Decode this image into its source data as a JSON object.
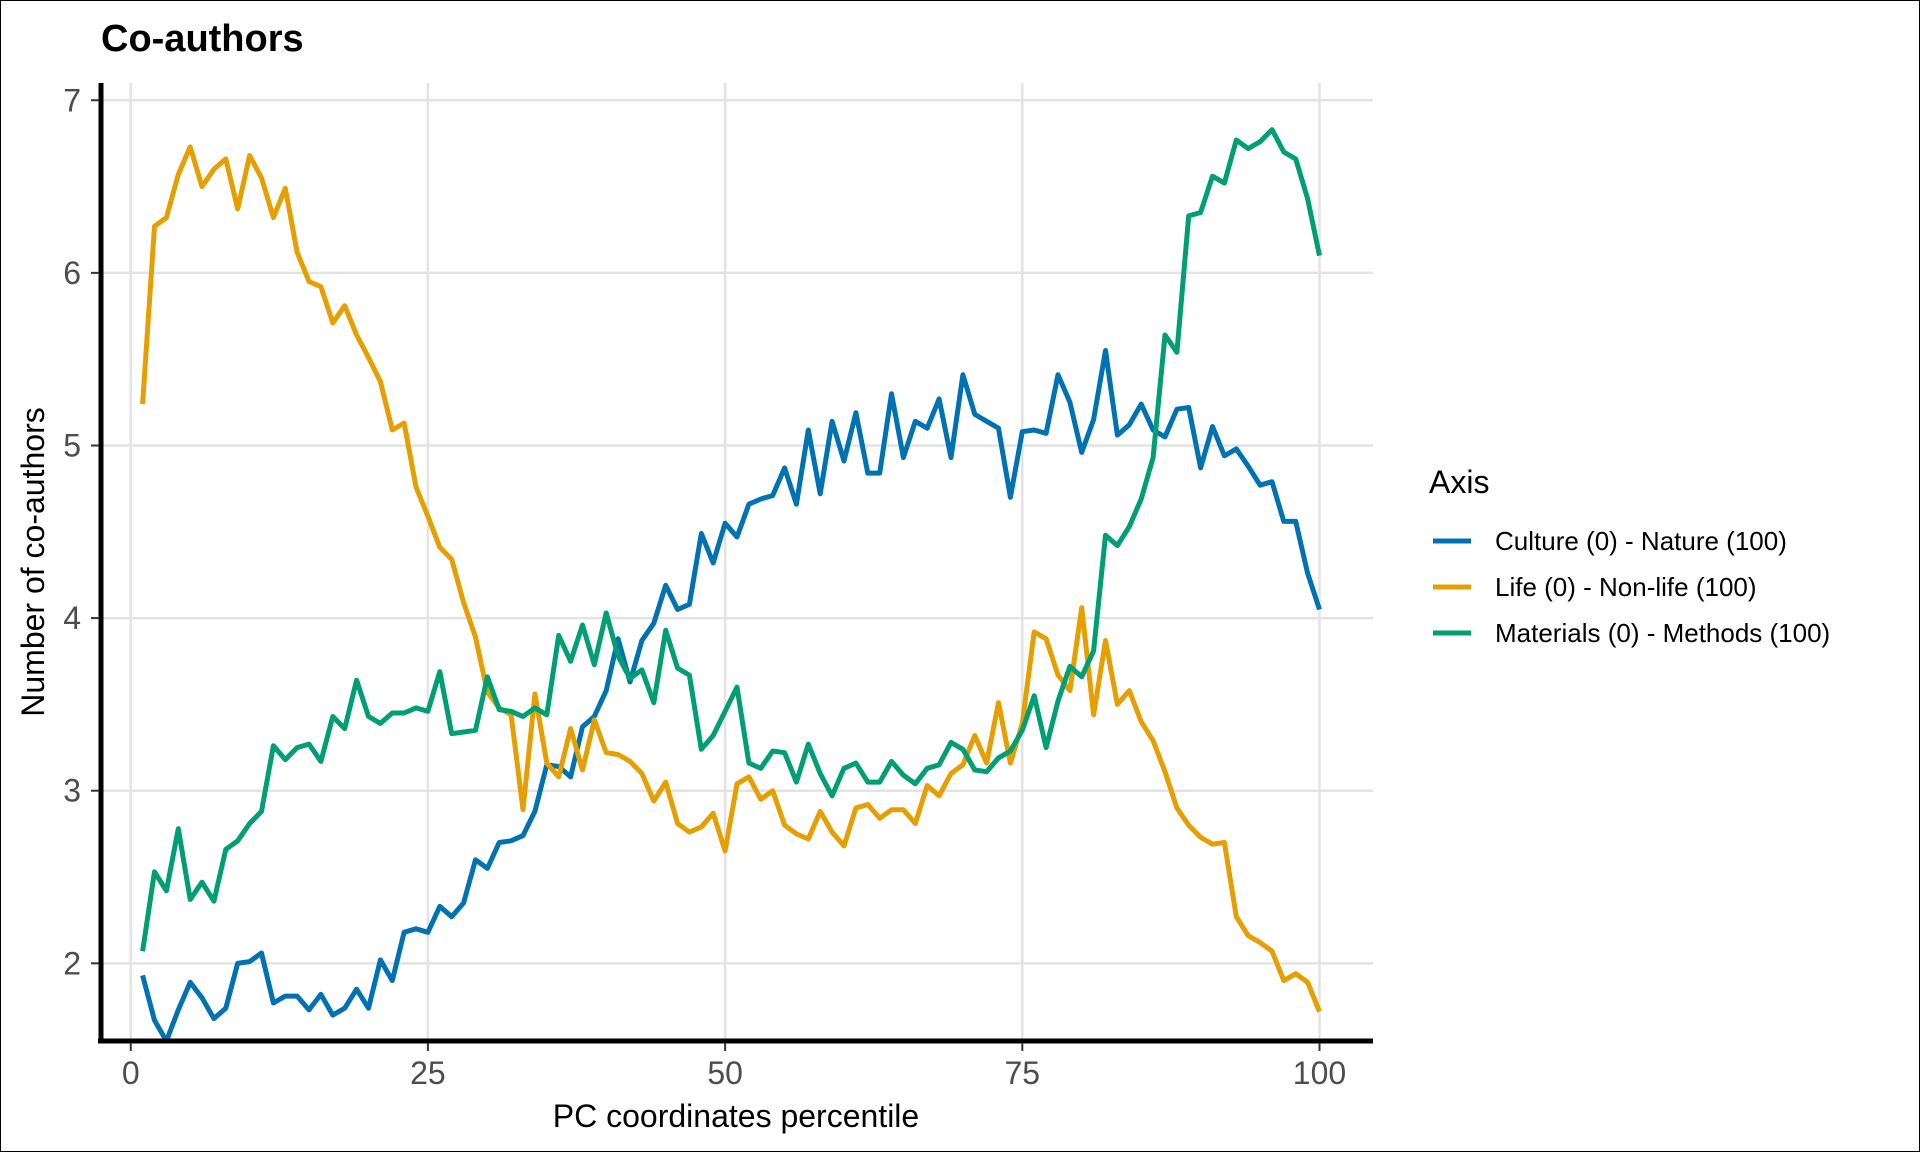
{
  "chart_data": {
    "type": "line",
    "title": "Co-authors",
    "xlabel": "PC coordinates percentile",
    "ylabel": "Number of co-authors",
    "xlim": [
      -2.5,
      104.5
    ],
    "ylim": [
      1.55,
      7.1
    ],
    "xticks": [
      0,
      25,
      50,
      75,
      100
    ],
    "xtick_labels": [
      "0",
      "25",
      "50",
      "75",
      "100"
    ],
    "yticks": [
      2,
      3,
      4,
      5,
      6,
      7
    ],
    "ytick_labels": [
      "2",
      "3",
      "4",
      "5",
      "6",
      "7"
    ],
    "grid": true,
    "legend": {
      "title": "Axis",
      "position": "right"
    },
    "x": [
      1,
      2,
      3,
      4,
      5,
      6,
      7,
      8,
      9,
      10,
      11,
      12,
      13,
      14,
      15,
      16,
      17,
      18,
      19,
      20,
      21,
      22,
      23,
      24,
      25,
      26,
      27,
      28,
      29,
      30,
      31,
      32,
      33,
      34,
      35,
      36,
      37,
      38,
      39,
      40,
      41,
      42,
      43,
      44,
      45,
      46,
      47,
      48,
      49,
      50,
      51,
      52,
      53,
      54,
      55,
      56,
      57,
      58,
      59,
      60,
      61,
      62,
      63,
      64,
      65,
      66,
      67,
      68,
      69,
      70,
      71,
      72,
      73,
      74,
      75,
      76,
      77,
      78,
      79,
      80,
      81,
      82,
      83,
      84,
      85,
      86,
      87,
      88,
      89,
      90,
      91,
      92,
      93,
      94,
      95,
      96,
      97,
      98,
      99,
      100
    ],
    "series": [
      {
        "name": "Culture (0) - Nature (100)",
        "color": "#0072b2",
        "values": [
          1.93,
          1.67,
          1.55,
          1.73,
          1.89,
          1.8,
          1.68,
          1.74,
          2.0,
          2.01,
          2.06,
          1.77,
          1.81,
          1.81,
          1.73,
          1.82,
          1.7,
          1.74,
          1.85,
          1.74,
          2.02,
          1.9,
          2.18,
          2.2,
          2.18,
          2.33,
          2.27,
          2.35,
          2.6,
          2.55,
          2.7,
          2.71,
          2.74,
          2.88,
          3.15,
          3.14,
          3.08,
          3.37,
          3.43,
          3.58,
          3.88,
          3.63,
          3.87,
          3.97,
          4.19,
          4.05,
          4.08,
          4.49,
          4.32,
          4.55,
          4.47,
          4.66,
          4.69,
          4.71,
          4.87,
          4.66,
          5.09,
          4.72,
          5.14,
          4.91,
          5.19,
          4.84,
          4.84,
          5.3,
          4.93,
          5.14,
          5.1,
          5.27,
          4.93,
          5.41,
          5.18,
          5.14,
          5.1,
          4.7,
          5.08,
          5.09,
          5.07,
          5.41,
          5.25,
          4.96,
          5.15,
          5.55,
          5.06,
          5.12,
          5.24,
          5.09,
          5.05,
          5.21,
          5.22,
          4.87,
          5.11,
          4.94,
          4.98,
          4.88,
          4.77,
          4.79,
          4.56,
          4.56,
          4.26,
          4.05
        ]
      },
      {
        "name": "Life (0) - Non-life (100)",
        "color": "#e69f00",
        "values": [
          5.24,
          6.27,
          6.32,
          6.57,
          6.73,
          6.5,
          6.6,
          6.66,
          6.37,
          6.68,
          6.55,
          6.32,
          6.49,
          6.12,
          5.95,
          5.92,
          5.71,
          5.81,
          5.64,
          5.51,
          5.37,
          5.09,
          5.13,
          4.76,
          4.59,
          4.41,
          4.34,
          4.09,
          3.89,
          3.57,
          3.48,
          3.44,
          2.89,
          3.56,
          3.16,
          3.08,
          3.36,
          3.12,
          3.41,
          3.22,
          3.21,
          3.17,
          3.1,
          2.94,
          3.05,
          2.81,
          2.76,
          2.79,
          2.87,
          2.65,
          3.04,
          3.08,
          2.95,
          3.0,
          2.8,
          2.75,
          2.72,
          2.88,
          2.76,
          2.68,
          2.9,
          2.92,
          2.84,
          2.89,
          2.89,
          2.81,
          3.03,
          2.97,
          3.1,
          3.15,
          3.32,
          3.16,
          3.51,
          3.16,
          3.39,
          3.92,
          3.88,
          3.67,
          3.58,
          4.06,
          3.44,
          3.87,
          3.5,
          3.58,
          3.4,
          3.29,
          3.11,
          2.9,
          2.8,
          2.73,
          2.69,
          2.7,
          2.27,
          2.16,
          2.12,
          2.07,
          1.9,
          1.94,
          1.89,
          1.72
        ]
      },
      {
        "name": "Materials (0) - Methods (100)",
        "color": "#009e73",
        "values": [
          2.07,
          2.53,
          2.42,
          2.78,
          2.37,
          2.47,
          2.36,
          2.66,
          2.71,
          2.81,
          2.88,
          3.26,
          3.18,
          3.25,
          3.27,
          3.17,
          3.43,
          3.36,
          3.64,
          3.43,
          3.39,
          3.45,
          3.45,
          3.48,
          3.46,
          3.69,
          3.33,
          3.34,
          3.35,
          3.66,
          3.47,
          3.46,
          3.43,
          3.48,
          3.44,
          3.9,
          3.75,
          3.96,
          3.73,
          4.03,
          3.78,
          3.65,
          3.7,
          3.51,
          3.93,
          3.71,
          3.67,
          3.24,
          3.32,
          3.46,
          3.6,
          3.16,
          3.13,
          3.23,
          3.22,
          3.05,
          3.27,
          3.1,
          2.97,
          3.13,
          3.16,
          3.05,
          3.05,
          3.17,
          3.09,
          3.04,
          3.13,
          3.15,
          3.28,
          3.24,
          3.12,
          3.11,
          3.19,
          3.23,
          3.35,
          3.55,
          3.25,
          3.52,
          3.72,
          3.66,
          3.81,
          4.48,
          4.42,
          4.53,
          4.69,
          4.93,
          5.64,
          5.54,
          6.33,
          6.35,
          6.56,
          6.52,
          6.77,
          6.72,
          6.76,
          6.83,
          6.7,
          6.66,
          6.43,
          6.1
        ]
      }
    ]
  }
}
